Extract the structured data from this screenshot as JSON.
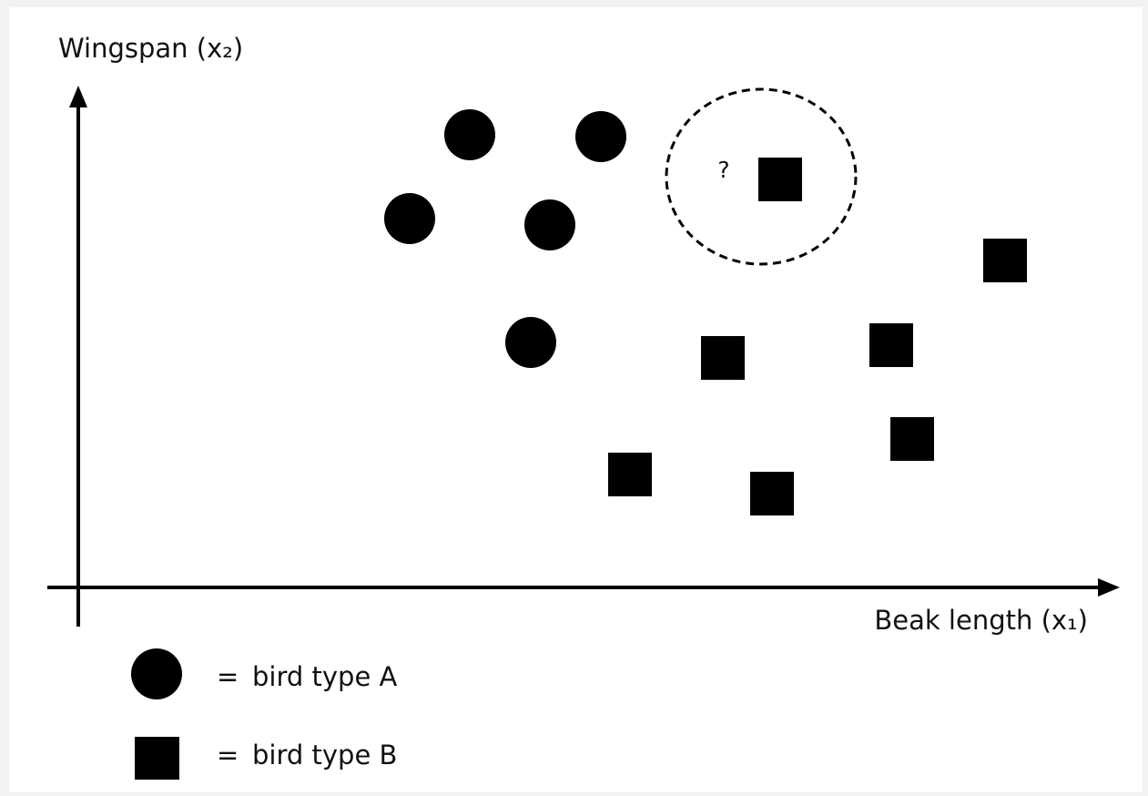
{
  "axes": {
    "y_label": "Wingspan (x₂)",
    "x_label": "Beak length (x₁)"
  },
  "annotation": "?",
  "legend": [
    {
      "symbol_text": "=",
      "label": "bird type A"
    },
    {
      "symbol_text": "=",
      "label": "bird type B"
    }
  ]
}
